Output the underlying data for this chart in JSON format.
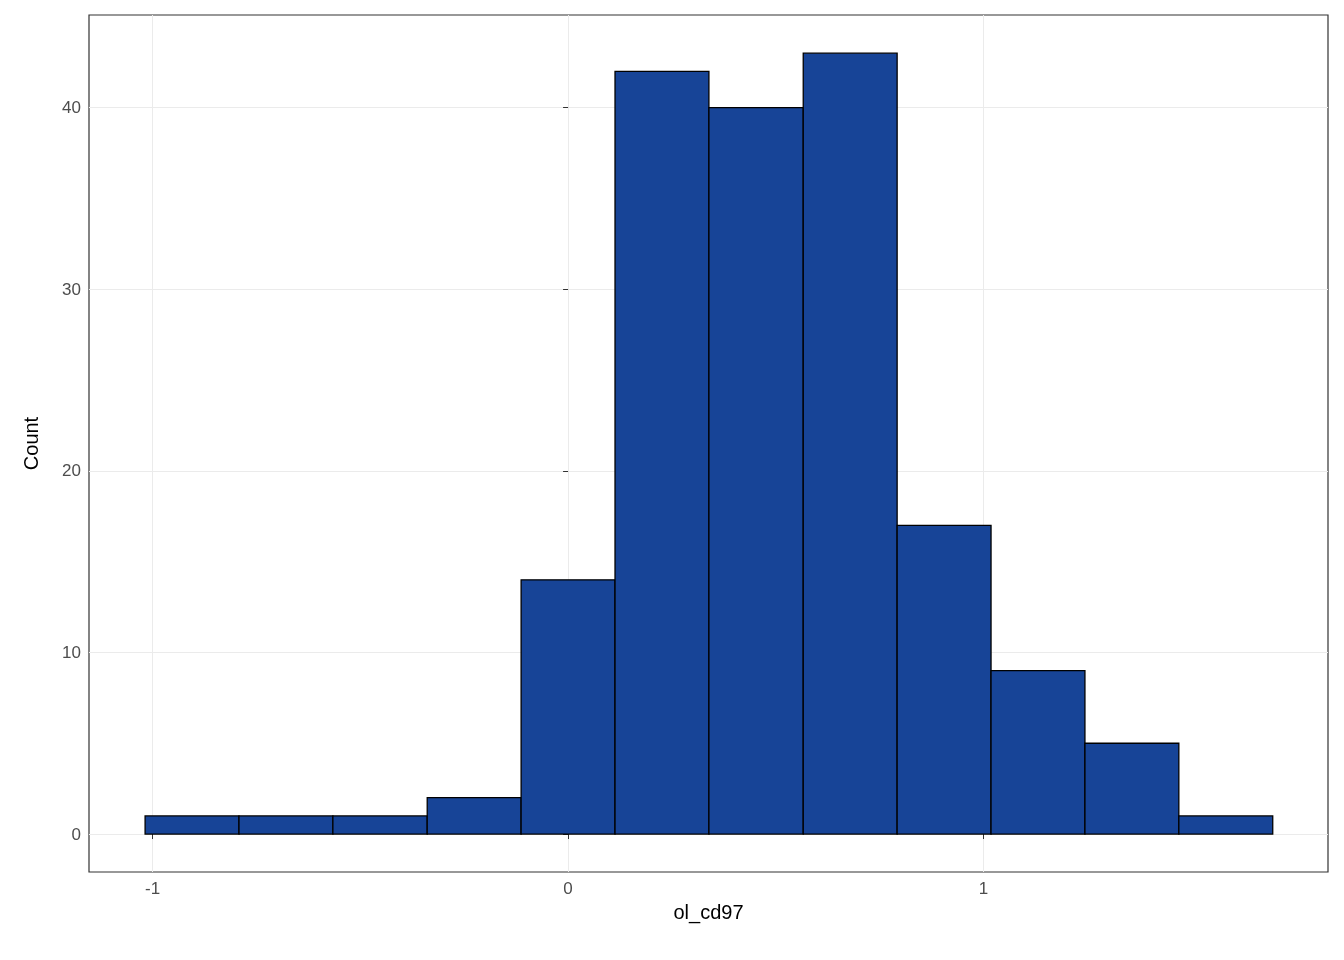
{
  "chart_data": {
    "type": "histogram",
    "xlabel": "ol_cd97",
    "ylabel": "Count",
    "bins": [
      -1.018,
      -0.792,
      -0.566,
      -0.339,
      -0.113,
      0.113,
      0.339,
      0.566,
      0.792,
      1.018,
      1.244,
      1.47,
      1.696
    ],
    "values": [
      1,
      1,
      1,
      2,
      14,
      42,
      40,
      43,
      17,
      9,
      5,
      1
    ],
    "color": "#174497",
    "xlim": [
      -1.153,
      1.829
    ],
    "xticks": [
      -1,
      0,
      1
    ],
    "ylim": [
      -2.09,
      45.1
    ],
    "yticks": [
      0,
      10,
      20,
      30,
      40
    ],
    "grid": true
  }
}
